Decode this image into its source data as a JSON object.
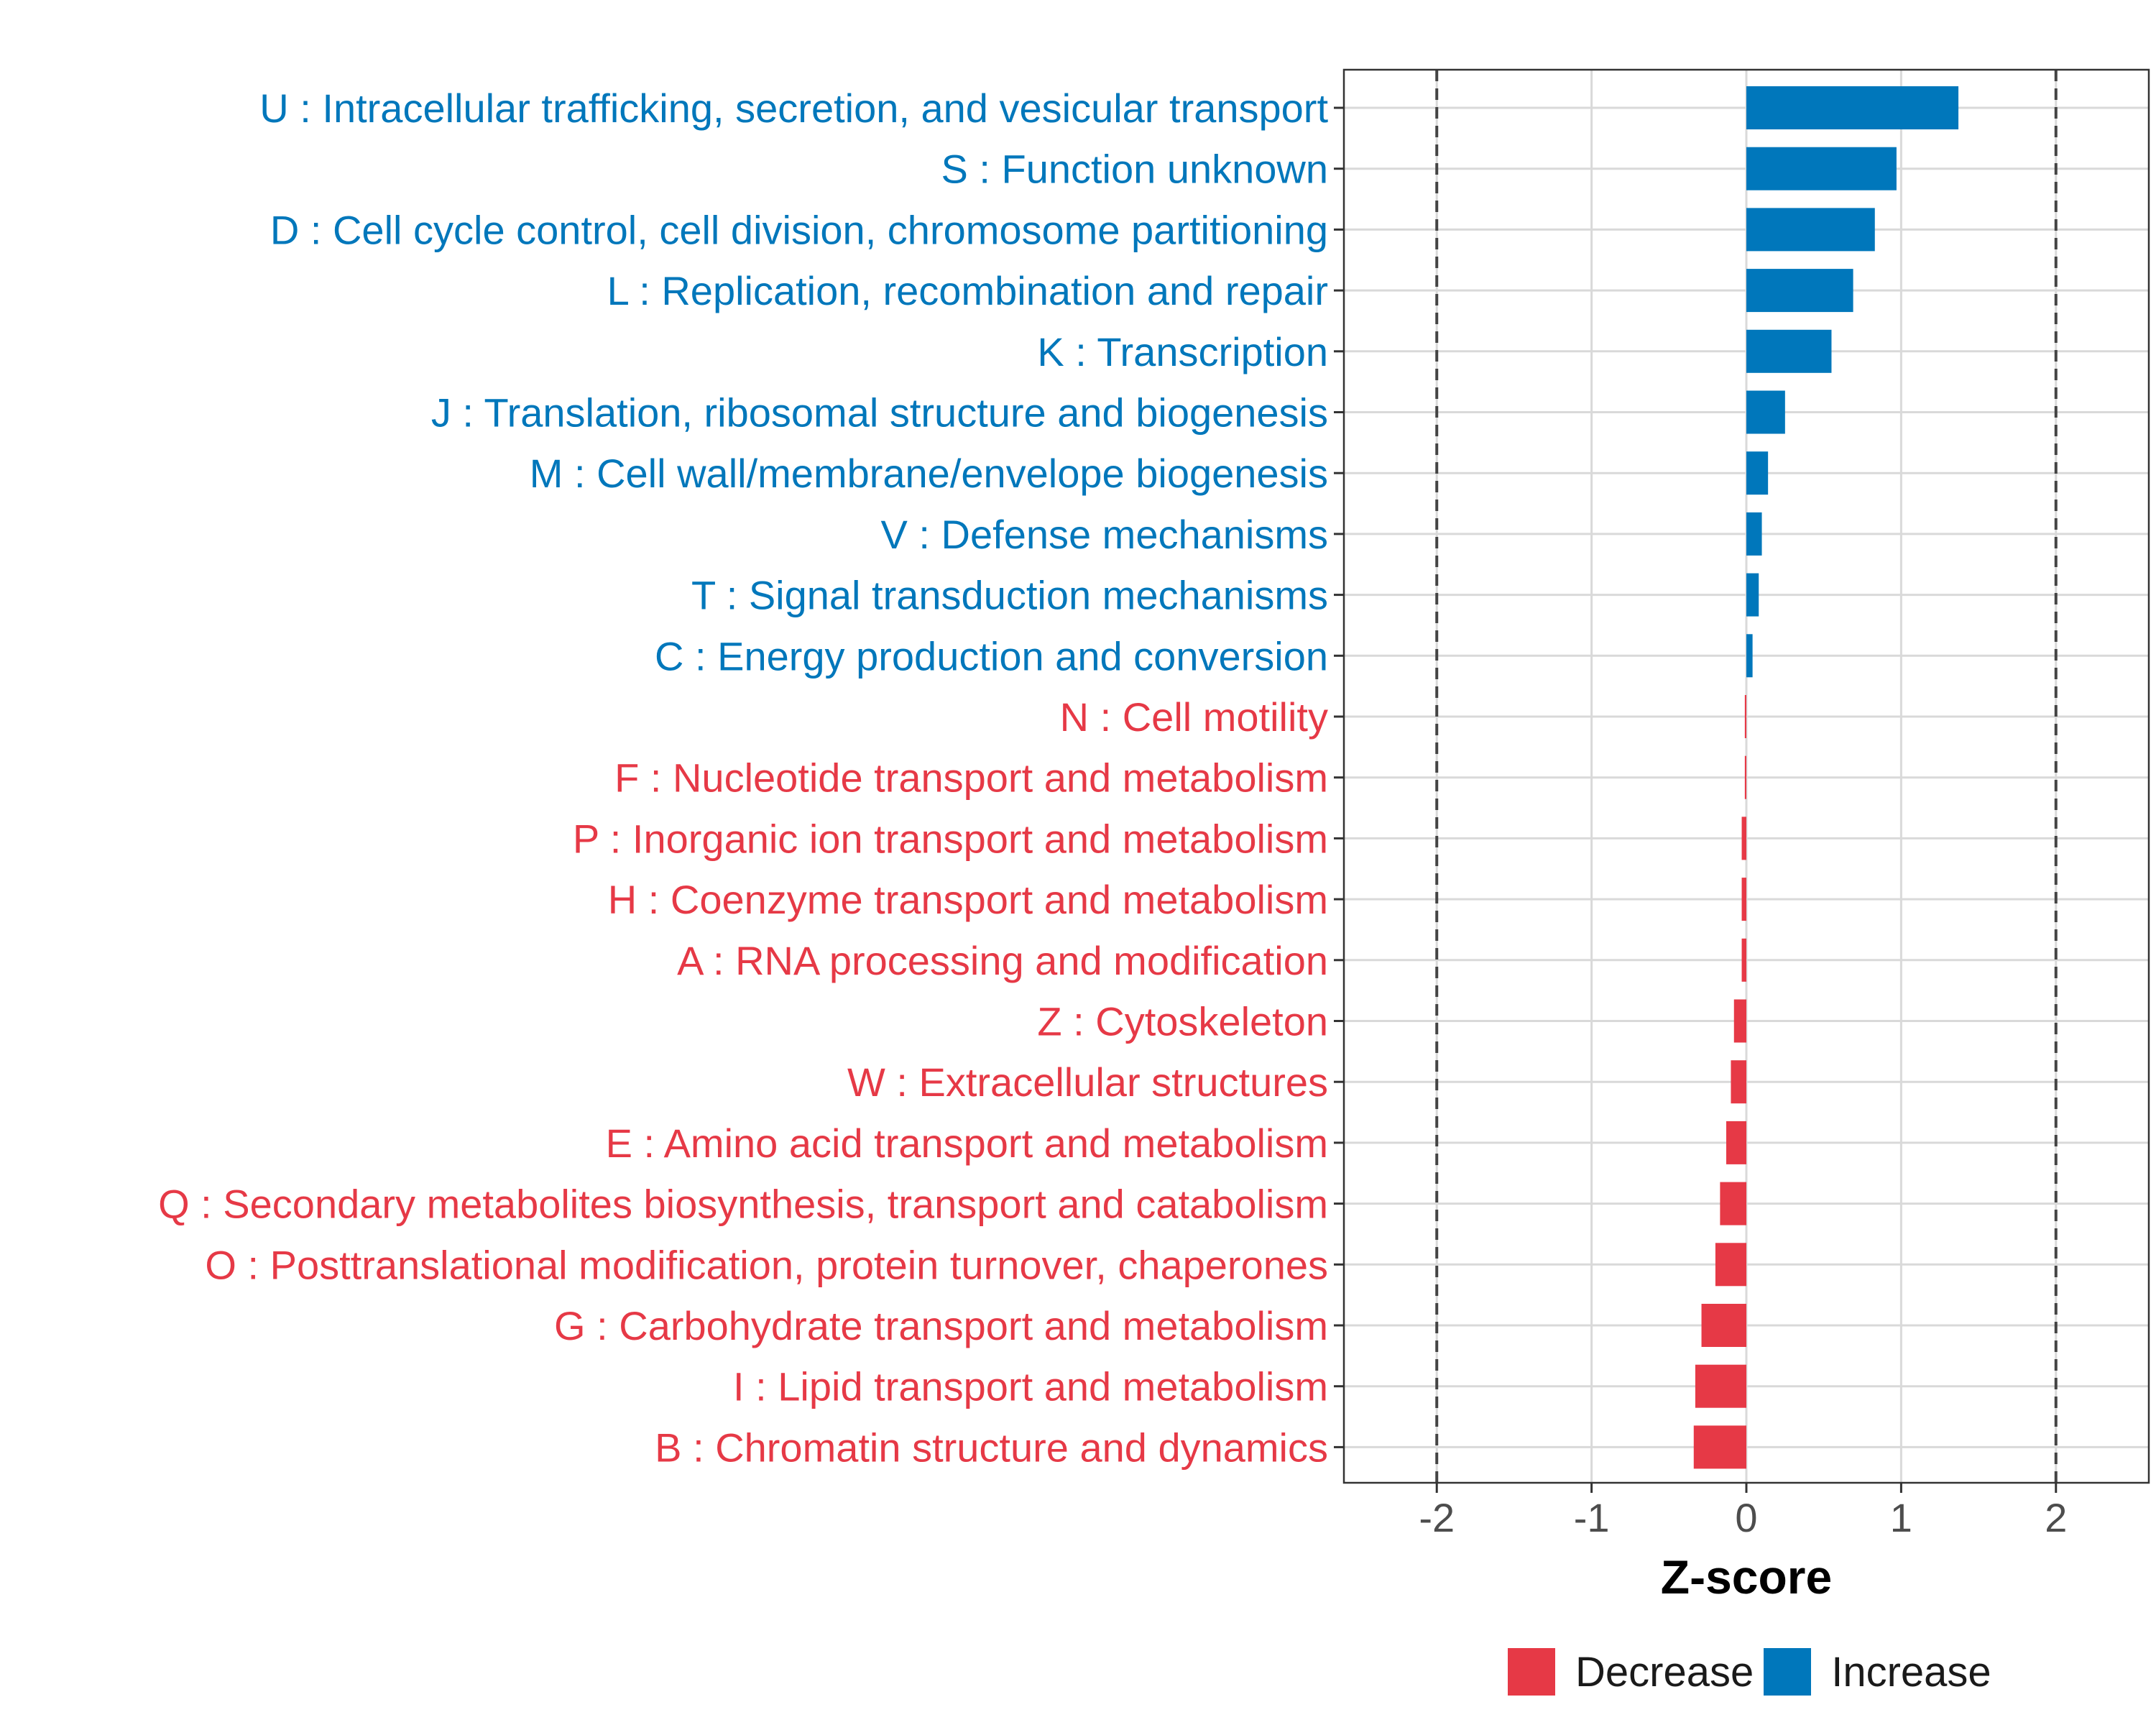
{
  "chart_data": {
    "type": "bar",
    "orientation": "horizontal",
    "title": "",
    "xlabel": "Z-score",
    "ylabel": "",
    "xlim": [
      -2.6,
      2.6
    ],
    "xticks": [
      -2,
      -1,
      0,
      1,
      2
    ],
    "xtick_labels": [
      "-2",
      "-1",
      "0",
      "1",
      "2"
    ],
    "reference_lines": [
      -2,
      2
    ],
    "grid": true,
    "legend_position": "bottom",
    "colors": {
      "Decrease": "#E63946",
      "Increase": "#0077BB"
    },
    "categories": [
      "U : Intracellular trafficking, secretion, and vesicular transport",
      "S : Function unknown",
      "D : Cell cycle control, cell division, chromosome partitioning",
      "L : Replication, recombination and repair",
      "K : Transcription",
      "J : Translation, ribosomal structure and biogenesis",
      "M : Cell wall/membrane/envelope biogenesis",
      "V : Defense mechanisms",
      "T : Signal transduction mechanisms",
      "C : Energy production and conversion",
      "N : Cell motility",
      "F : Nucleotide transport and metabolism",
      "P : Inorganic ion transport and metabolism",
      "H : Coenzyme transport and metabolism",
      "A : RNA processing and modification",
      "Z : Cytoskeleton",
      "W : Extracellular structures",
      "E : Amino acid transport and metabolism",
      "Q : Secondary metabolites biosynthesis, transport and catabolism",
      "O : Posttranslational modification, protein turnover, chaperones",
      "G : Carbohydrate transport and metabolism",
      "I : Lipid transport and metabolism",
      "B : Chromatin structure and dynamics"
    ],
    "values": [
      1.37,
      0.97,
      0.83,
      0.69,
      0.55,
      0.25,
      0.14,
      0.1,
      0.08,
      0.04,
      -0.01,
      -0.01,
      -0.03,
      -0.03,
      -0.03,
      -0.08,
      -0.1,
      -0.13,
      -0.17,
      -0.2,
      -0.29,
      -0.33,
      -0.34
    ],
    "groups": [
      "Increase",
      "Increase",
      "Increase",
      "Increase",
      "Increase",
      "Increase",
      "Increase",
      "Increase",
      "Increase",
      "Increase",
      "Decrease",
      "Decrease",
      "Decrease",
      "Decrease",
      "Decrease",
      "Decrease",
      "Decrease",
      "Decrease",
      "Decrease",
      "Decrease",
      "Decrease",
      "Decrease",
      "Decrease"
    ],
    "legend": [
      "Decrease",
      "Increase"
    ]
  }
}
